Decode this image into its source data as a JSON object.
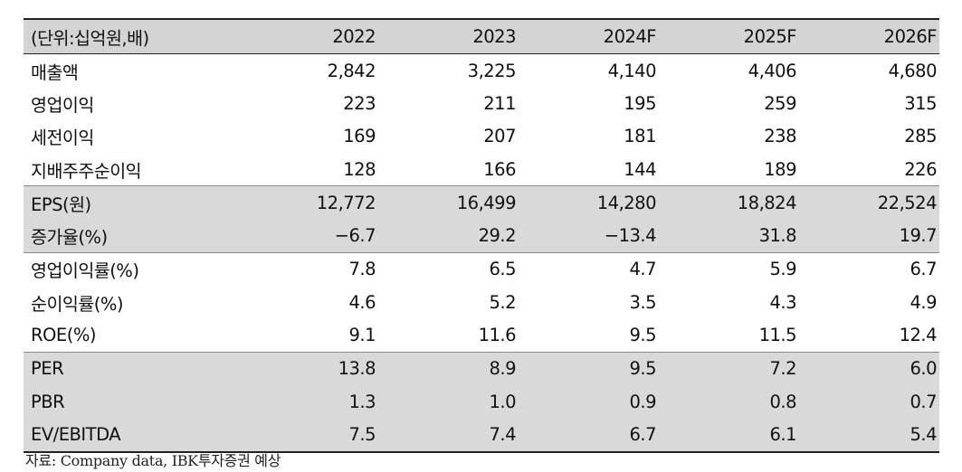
{
  "table": {
    "header": {
      "unit": "(단위:십억원,배)",
      "years": [
        "2022",
        "2023",
        "2024F",
        "2025F",
        "2026F"
      ]
    },
    "rows": [
      {
        "label": "매출액",
        "values": [
          "2,842",
          "3,225",
          "4,140",
          "4,406",
          "4,680"
        ]
      },
      {
        "label": "영업이익",
        "values": [
          "223",
          "211",
          "195",
          "259",
          "315"
        ]
      },
      {
        "label": "세전이익",
        "values": [
          "169",
          "207",
          "181",
          "238",
          "285"
        ]
      },
      {
        "label": "지배주주순이익",
        "values": [
          "128",
          "166",
          "144",
          "189",
          "226"
        ]
      },
      {
        "label": "EPS(원)",
        "values": [
          "12,772",
          "16,499",
          "14,280",
          "18,824",
          "22,524"
        ]
      },
      {
        "label": "증가율(%)",
        "values": [
          "−6.7",
          "29.2",
          "−13.4",
          "31.8",
          "19.7"
        ]
      },
      {
        "label": "영업이익률(%)",
        "values": [
          "7.8",
          "6.5",
          "4.7",
          "5.9",
          "6.7"
        ]
      },
      {
        "label": "순이익률(%)",
        "values": [
          "4.6",
          "5.2",
          "3.5",
          "4.3",
          "4.9"
        ]
      },
      {
        "label": "ROE(%)",
        "values": [
          "9.1",
          "11.6",
          "9.5",
          "11.5",
          "12.4"
        ]
      },
      {
        "label": "PER",
        "values": [
          "13.8",
          "8.9",
          "9.5",
          "7.2",
          "6.0"
        ]
      },
      {
        "label": "PBR",
        "values": [
          "1.3",
          "1.0",
          "0.9",
          "0.8",
          "0.7"
        ]
      },
      {
        "label": "EV/EBITDA",
        "values": [
          "7.5",
          "7.4",
          "6.7",
          "6.1",
          "5.4"
        ]
      }
    ],
    "shading": {
      "shaded_row_color": "#d9d9d9",
      "header_color": "#d4d4d4"
    }
  },
  "footer": {
    "source": "자료: Company data, IBK투자증권 예상"
  }
}
